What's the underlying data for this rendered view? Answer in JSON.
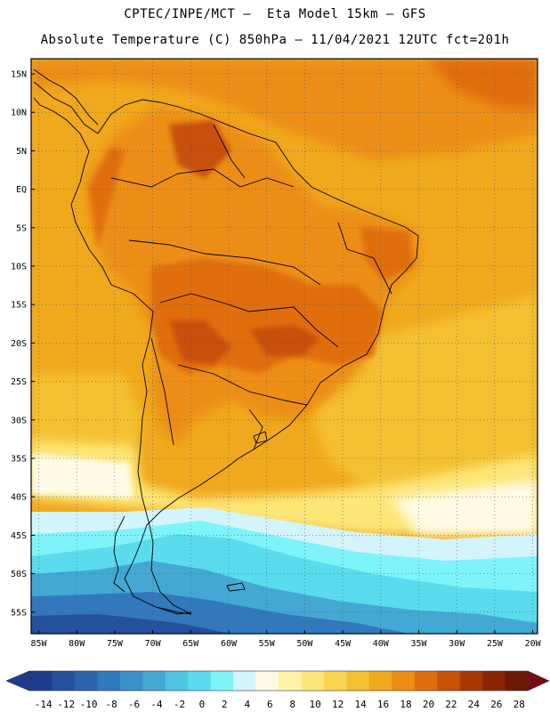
{
  "header": {
    "line1": "CPTEC/INPE/MCT –  Eta Model 15km – GFS",
    "line2": "Absolute Temperature (C) 850hPa – 11/04/2021 12UTC fct=201h"
  },
  "axes": {
    "lat_labels": [
      "15N",
      "10N",
      "5N",
      "EQ",
      "5S",
      "10S",
      "15S",
      "20S",
      "25S",
      "30S",
      "35S",
      "40S",
      "45S",
      "50S",
      "55S"
    ],
    "lon_labels": [
      "85W",
      "80W",
      "75W",
      "70W",
      "65W",
      "60W",
      "55W",
      "50W",
      "45W",
      "40W",
      "35W",
      "30W",
      "25W",
      "20W"
    ]
  },
  "colorbar": {
    "labels": [
      "-14",
      "-12",
      "-10",
      "-8",
      "-6",
      "-4",
      "-2",
      "0",
      "2",
      "4",
      "6",
      "8",
      "10",
      "12",
      "14",
      "16",
      "18",
      "20",
      "22",
      "24",
      "26",
      "28"
    ],
    "colors": [
      "#1e3c8c",
      "#25509c",
      "#2b64ac",
      "#3278bc",
      "#3a90c8",
      "#44a8d4",
      "#4ec4e2",
      "#5adcee",
      "#7ef4fa",
      "#d4f4fc",
      "#fffbe6",
      "#fff4a8",
      "#fce678",
      "#f8d450",
      "#f4c030",
      "#f0a81c",
      "#ec8e14",
      "#e06e0c",
      "#c85008",
      "#a83806",
      "#8c2606",
      "#6c1a06"
    ]
  },
  "map": {
    "shading": {
      "ocean_base": "#f0a81c",
      "tropical": "#ec8e14",
      "land_hot": "#e06e0c",
      "land_hottest": "#c85008",
      "mid_lat": "#f4c030",
      "cool_yellow": "#fce678",
      "pale": "#fffbe6",
      "light_blue": "#d4f4fc",
      "cyan": "#7ef4fa",
      "sky": "#5adcee",
      "blue_mid": "#44a8d4",
      "blue_deep": "#3278bc",
      "blue_deeper": "#25509c"
    }
  }
}
